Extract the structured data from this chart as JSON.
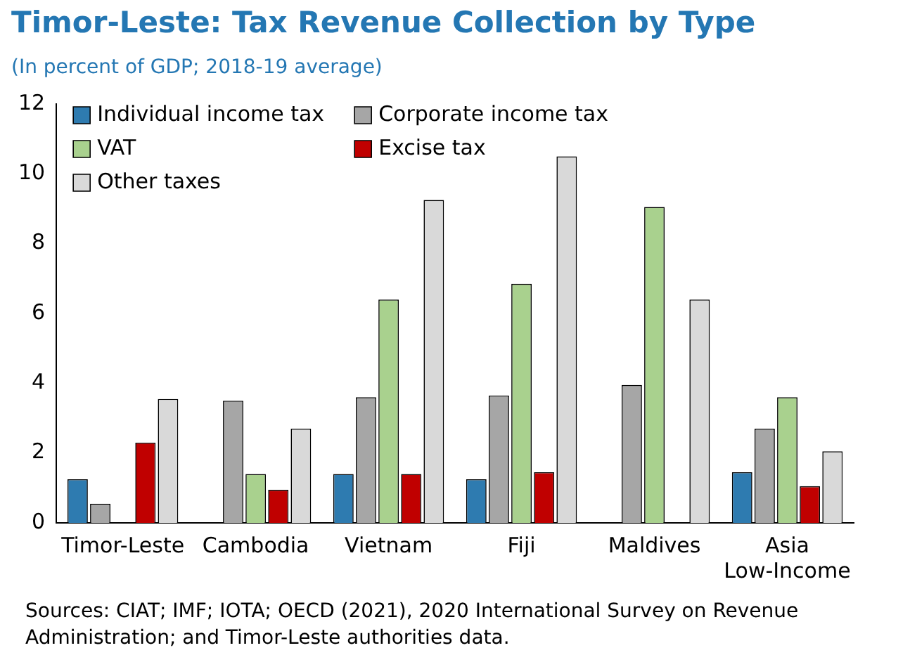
{
  "chart_data": {
    "type": "bar",
    "title": "Timor-Leste: Tax Revenue Collection by Type",
    "subtitle": "(In percent of GDP; 2018-19 average)",
    "categories": [
      "Timor-Leste",
      "Cambodia",
      "Vietnam",
      "Fiji",
      "Maldives",
      "Asia Low-Income"
    ],
    "series": [
      {
        "name": "Individual income tax",
        "color": "#2e7bb0",
        "values": [
          1.25,
          null,
          1.4,
          1.25,
          null,
          1.45
        ]
      },
      {
        "name": "Corporate income tax",
        "color": "#a6a6a6",
        "values": [
          0.55,
          3.5,
          3.6,
          3.65,
          3.95,
          2.7
        ]
      },
      {
        "name": "VAT",
        "color": "#a9d18e",
        "values": [
          null,
          1.4,
          6.4,
          6.85,
          9.05,
          3.6
        ]
      },
      {
        "name": "Excise tax",
        "color": "#c00000",
        "values": [
          2.3,
          0.95,
          1.4,
          1.45,
          null,
          1.05
        ]
      },
      {
        "name": "Other taxes",
        "color": "#d9d9d9",
        "values": [
          3.55,
          2.7,
          9.25,
          10.5,
          6.4,
          2.05
        ]
      }
    ],
    "ylim": [
      0,
      12
    ],
    "yticks": [
      0,
      2,
      4,
      6,
      8,
      10,
      12
    ],
    "grid": false,
    "legend": "top left",
    "annotations": [
      "Sources: CIAT; IMF; IOTA; OECD (2021), 2020 International Survey on Revenue Administration; and Timor-Leste authorities data."
    ]
  }
}
